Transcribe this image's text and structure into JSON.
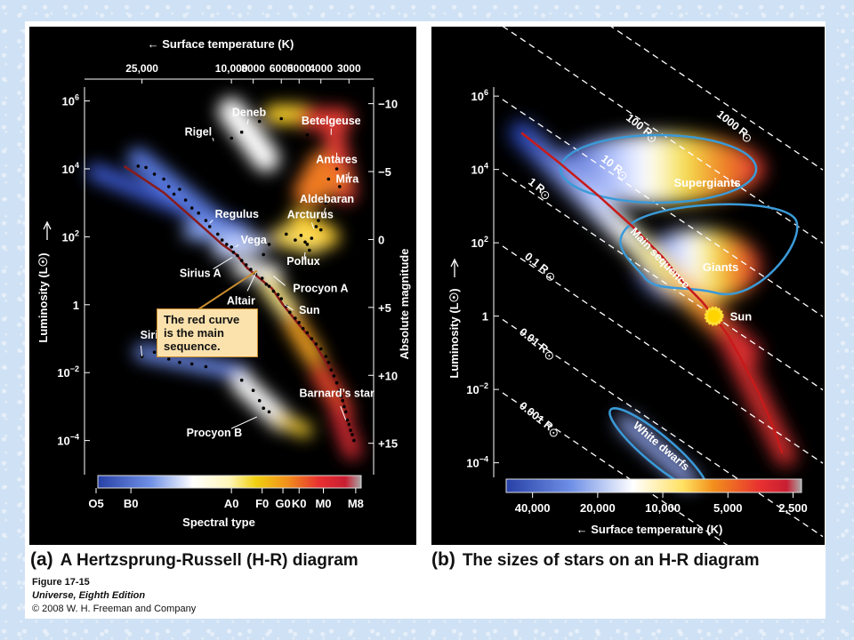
{
  "figure": {
    "number": "Figure 17-15",
    "book": "Universe, Eighth Edition",
    "copyright": "© 2008 W. H. Freeman and Company"
  },
  "panel_a": {
    "letter": "(a)",
    "caption": "A Hertzsprung-Russell (H-R) diagram",
    "top_axis_title": "Surface temperature (K)",
    "left_axis_title": "Luminosity (L☉)",
    "right_axis_title": "Absolute magnitude",
    "bottom_axis_title": "Spectral type",
    "note": "The red curve is the main sequence."
  },
  "panel_b": {
    "letter": "(b)",
    "caption": "The sizes of stars on an H-R diagram",
    "left_axis_title": "Luminosity (L☉)",
    "bottom_axis_title": "Surface temperature (K)"
  },
  "chart_data": [
    {
      "type": "scatter",
      "panel": "a",
      "x_scale": "log temperature (decreasing to the right)",
      "y_scale": "log",
      "top_ticks": [
        {
          "label": "25,000",
          "value": 25000
        },
        {
          "label": "10,000",
          "value": 10000
        },
        {
          "label": "8000",
          "value": 8000
        },
        {
          "label": "6000",
          "value": 6000
        },
        {
          "label": "5000",
          "value": 5000
        },
        {
          "label": "4000",
          "value": 4000
        },
        {
          "label": "3000",
          "value": 3000
        }
      ],
      "left_ticks": [
        {
          "base": "10",
          "exp": "6",
          "value": 1000000
        },
        {
          "base": "10",
          "exp": "4",
          "value": 10000
        },
        {
          "base": "10",
          "exp": "2",
          "value": 100
        },
        {
          "base": "1",
          "exp": "",
          "value": 1
        },
        {
          "base": "10",
          "exp": "−2",
          "value": 0.01
        },
        {
          "base": "10",
          "exp": "−4",
          "value": 0.0001
        }
      ],
      "right_ticks": [
        {
          "label": "−10",
          "value": -10
        },
        {
          "label": "−5",
          "value": -5
        },
        {
          "label": "0",
          "value": 0
        },
        {
          "label": "+5",
          "value": 5
        },
        {
          "label": "+10",
          "value": 10
        },
        {
          "label": "+15",
          "value": 15
        }
      ],
      "spectral_ticks": [
        {
          "label": "O5",
          "temp": 40000
        },
        {
          "label": "B0",
          "temp": 28000
        },
        {
          "label": "A0",
          "temp": 10000
        },
        {
          "label": "F0",
          "temp": 7300
        },
        {
          "label": "G0",
          "temp": 5900
        },
        {
          "label": "K0",
          "temp": 5000
        },
        {
          "label": "M0",
          "temp": 3900
        },
        {
          "label": "M8",
          "temp": 2800
        }
      ],
      "stars": [
        {
          "name": "Rigel",
          "temp": 12000,
          "lum": 66000
        },
        {
          "name": "Deneb",
          "temp": 8500,
          "lum": 200000
        },
        {
          "name": "Betelgeuse",
          "temp": 3600,
          "lum": 100000
        },
        {
          "name": "Antares",
          "temp": 3400,
          "lum": 30000
        },
        {
          "name": "Regulus",
          "temp": 12500,
          "lum": 250
        },
        {
          "name": "Vega",
          "temp": 9600,
          "lum": 50
        },
        {
          "name": "Arcturus",
          "temp": 4300,
          "lum": 170
        },
        {
          "name": "Aldebaran",
          "temp": 3900,
          "lum": 430
        },
        {
          "name": "Mira",
          "temp": 3000,
          "lum": 8000
        },
        {
          "name": "Pollux",
          "temp": 4700,
          "lum": 35
        },
        {
          "name": "Sirius A",
          "temp": 9900,
          "lum": 25
        },
        {
          "name": "Procyon A",
          "temp": 6500,
          "lum": 7
        },
        {
          "name": "Altair",
          "temp": 7700,
          "lum": 10
        },
        {
          "name": "Sun",
          "temp": 5800,
          "lum": 1
        },
        {
          "name": "Sirius B",
          "temp": 25000,
          "lum": 0.03
        },
        {
          "name": "Procyon B",
          "temp": 7700,
          "lum": 0.0005
        },
        {
          "name": "Barnard’s star",
          "temp": 3100,
          "lum": 0.0004
        }
      ]
    },
    {
      "type": "line",
      "panel": "b",
      "x_scale": "log temperature (decreasing to the right)",
      "y_scale": "log",
      "bottom_ticks": [
        {
          "label": "40,000",
          "value": 40000
        },
        {
          "label": "20,000",
          "value": 20000
        },
        {
          "label": "10,000",
          "value": 10000
        },
        {
          "label": "5,000",
          "value": 5000
        },
        {
          "label": "2,500",
          "value": 2500
        }
      ],
      "left_ticks": [
        {
          "base": "10",
          "exp": "6",
          "value": 1000000
        },
        {
          "base": "10",
          "exp": "4",
          "value": 10000
        },
        {
          "base": "10",
          "exp": "2",
          "value": 100
        },
        {
          "base": "1",
          "exp": "",
          "value": 1
        },
        {
          "base": "10",
          "exp": "−2",
          "value": 0.01
        },
        {
          "base": "10",
          "exp": "−4",
          "value": 0.0001
        }
      ],
      "radius_lines": [
        {
          "label": "1000 R",
          "radius": 1000
        },
        {
          "label": "100 R",
          "radius": 100
        },
        {
          "label": "10 R",
          "radius": 10
        },
        {
          "label": "1 R",
          "radius": 1
        },
        {
          "label": "0.1 R",
          "radius": 0.1
        },
        {
          "label": "0.01 R",
          "radius": 0.01
        },
        {
          "label": "0.001 R",
          "radius": 0.001
        }
      ],
      "regions": [
        "Supergiants",
        "Giants",
        "Main sequence",
        "White dwarfs"
      ],
      "sun_label": "Sun",
      "sun_point": {
        "temp": 5800,
        "lum": 1
      }
    }
  ]
}
